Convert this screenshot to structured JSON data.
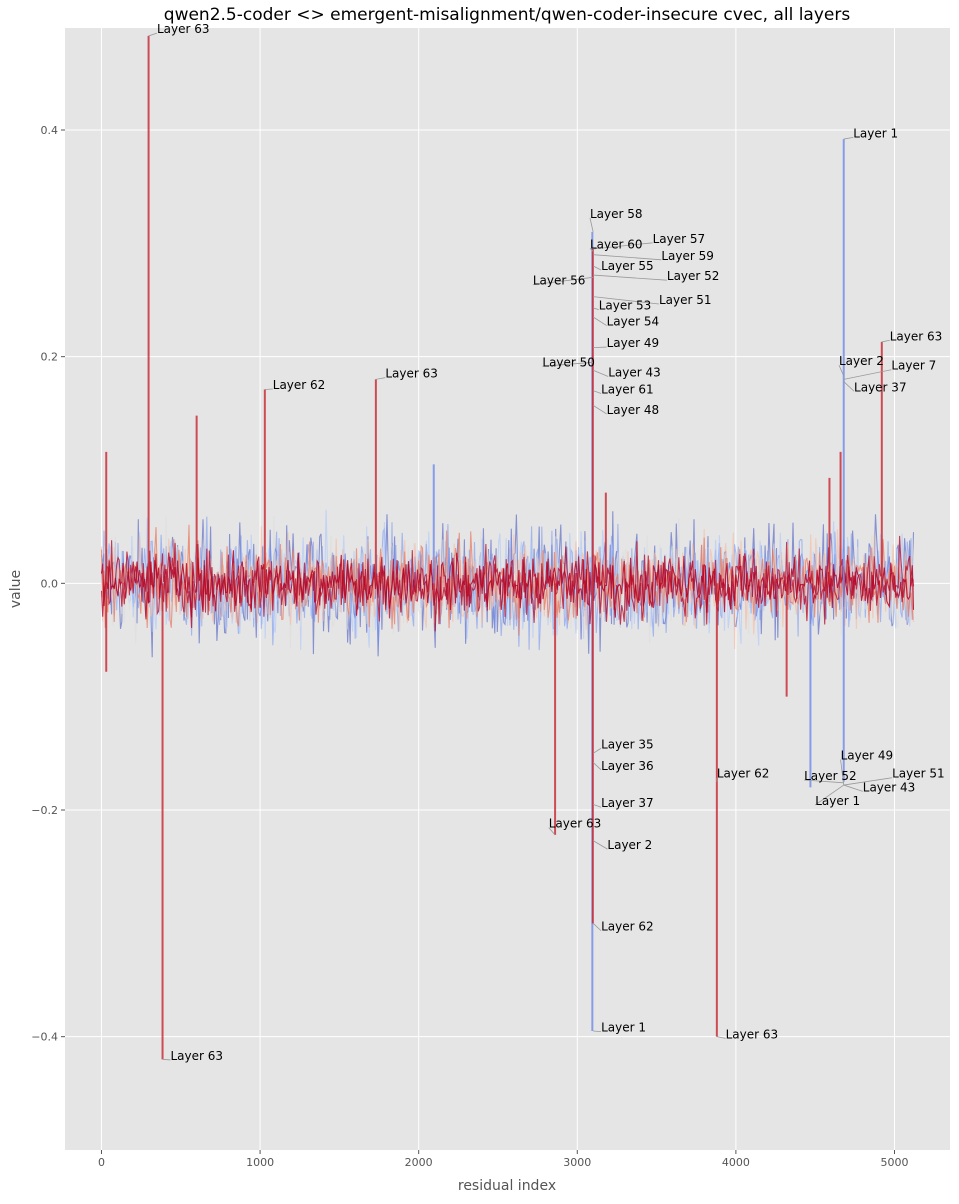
{
  "chart_data": {
    "type": "line",
    "title": "qwen2.5-coder <> emergent-misalignment/qwen-coder-insecure cvec, all layers",
    "xlabel": "residual index",
    "ylabel": "value",
    "xlim": [
      -230,
      5350
    ],
    "ylim": [
      -0.5,
      0.49
    ],
    "x_ticks": [
      0,
      1000,
      2000,
      3000,
      4000,
      5000
    ],
    "x_tick_labels": [
      "0",
      "1000",
      "2000",
      "3000",
      "4000",
      "5000"
    ],
    "y_ticks": [
      -0.4,
      -0.2,
      0.0,
      0.2,
      0.4
    ],
    "y_tick_labels": [
      "−0.4",
      "−0.2",
      "0.0",
      "0.2",
      "0.4"
    ],
    "grid": true,
    "n_residual": 5120,
    "colormap": "coolwarm (layer 1 blue → layer 63 red)",
    "band_colors": [
      "#3b4cc0",
      "#6f92f3",
      "#aac7fd",
      "#dddcdc",
      "#f7b89c",
      "#e8765c",
      "#b40426"
    ],
    "noise_band": {
      "blue_layers_amplitude": 0.045,
      "red_layers_amplitude": 0.035
    },
    "spikes": [
      {
        "x": 30,
        "top": 0.116,
        "bottom": -0.078,
        "layer": 63
      },
      {
        "x": 297,
        "top": 0.483,
        "bottom": 0.0,
        "layer": 63
      },
      {
        "x": 385,
        "top": 0.0,
        "bottom": -0.42,
        "layer": 63
      },
      {
        "x": 600,
        "top": 0.148,
        "bottom": 0.0,
        "layer": 63
      },
      {
        "x": 1030,
        "top": 0.171,
        "bottom": 0.0,
        "layer": 62
      },
      {
        "x": 1730,
        "top": 0.18,
        "bottom": 0.0,
        "layer": 63
      },
      {
        "x": 2095,
        "top": 0.105,
        "bottom": 0.0,
        "layer": 1
      },
      {
        "x": 2860,
        "top": 0.0,
        "bottom": -0.222,
        "layer": 63
      },
      {
        "x": 3095,
        "top": 0.31,
        "bottom": -0.395,
        "layer": 1
      },
      {
        "x": 3098,
        "top": 0.295,
        "bottom": -0.3,
        "layer": 62
      },
      {
        "x": 3180,
        "top": 0.08,
        "bottom": 0.0,
        "layer": 63
      },
      {
        "x": 3880,
        "top": 0.0,
        "bottom": -0.4,
        "layer": 63
      },
      {
        "x": 4320,
        "top": 0.0,
        "bottom": -0.1,
        "layer": 63
      },
      {
        "x": 4470,
        "top": 0.0,
        "bottom": -0.18,
        "layer": 1
      },
      {
        "x": 4590,
        "top": 0.093,
        "bottom": 0.0,
        "layer": 63
      },
      {
        "x": 4660,
        "top": 0.116,
        "bottom": 0.0,
        "layer": 63
      },
      {
        "x": 4680,
        "top": 0.392,
        "bottom": -0.175,
        "layer": 1
      },
      {
        "x": 4920,
        "top": 0.213,
        "bottom": 0.0,
        "layer": 63
      }
    ],
    "annotations": [
      {
        "text": "Layer 63",
        "x": 297,
        "y": 0.483,
        "tx": 350,
        "ty": 0.489
      },
      {
        "text": "Layer 62",
        "x": 1030,
        "y": 0.171,
        "tx": 1080,
        "ty": 0.175
      },
      {
        "text": "Layer 63",
        "x": 1730,
        "y": 0.18,
        "tx": 1790,
        "ty": 0.185
      },
      {
        "text": "Layer 1",
        "x": 4680,
        "y": 0.392,
        "tx": 4740,
        "ty": 0.397
      },
      {
        "text": "Layer 58",
        "x": 3100,
        "y": 0.31,
        "tx": 3080,
        "ty": 0.326
      },
      {
        "text": "Layer 57",
        "x": 3100,
        "y": 0.295,
        "tx": 3475,
        "ty": 0.304
      },
      {
        "text": "Layer 60",
        "x": 3100,
        "y": 0.293,
        "tx": 3080,
        "ty": 0.299
      },
      {
        "text": "Layer 59",
        "x": 3100,
        "y": 0.29,
        "tx": 3530,
        "ty": 0.289
      },
      {
        "text": "Layer 55",
        "x": 3100,
        "y": 0.28,
        "tx": 3150,
        "ty": 0.28
      },
      {
        "text": "Layer 52",
        "x": 3100,
        "y": 0.272,
        "tx": 3565,
        "ty": 0.271
      },
      {
        "text": "Layer 56",
        "x": 3100,
        "y": 0.27,
        "tx": 2720,
        "ty": 0.267
      },
      {
        "text": "Layer 51",
        "x": 3100,
        "y": 0.253,
        "tx": 3515,
        "ty": 0.25
      },
      {
        "text": "Layer 53",
        "x": 3100,
        "y": 0.243,
        "tx": 3135,
        "ty": 0.245
      },
      {
        "text": "Layer 54",
        "x": 3100,
        "y": 0.235,
        "tx": 3185,
        "ty": 0.231
      },
      {
        "text": "Layer 49",
        "x": 3100,
        "y": 0.208,
        "tx": 3185,
        "ty": 0.212
      },
      {
        "text": "Layer 50",
        "x": 3100,
        "y": 0.195,
        "tx": 2780,
        "ty": 0.195
      },
      {
        "text": "Layer 43",
        "x": 3100,
        "y": 0.188,
        "tx": 3195,
        "ty": 0.186
      },
      {
        "text": "Layer 61",
        "x": 3100,
        "y": 0.17,
        "tx": 3150,
        "ty": 0.171
      },
      {
        "text": "Layer 48",
        "x": 3100,
        "y": 0.157,
        "tx": 3185,
        "ty": 0.153
      },
      {
        "text": "Layer 63",
        "x": 4920,
        "y": 0.213,
        "tx": 4970,
        "ty": 0.218
      },
      {
        "text": "Layer 2",
        "x": 4680,
        "y": 0.183,
        "tx": 4650,
        "ty": 0.196
      },
      {
        "text": "Layer 7",
        "x": 4680,
        "y": 0.18,
        "tx": 4980,
        "ty": 0.192
      },
      {
        "text": "Layer 37",
        "x": 4680,
        "y": 0.178,
        "tx": 4745,
        "ty": 0.173
      },
      {
        "text": "Layer 35",
        "x": 3100,
        "y": -0.15,
        "tx": 3150,
        "ty": -0.142
      },
      {
        "text": "Layer 36",
        "x": 3100,
        "y": -0.158,
        "tx": 3150,
        "ty": -0.161
      },
      {
        "text": "Layer 37",
        "x": 3100,
        "y": -0.195,
        "tx": 3150,
        "ty": -0.194
      },
      {
        "text": "Layer 63",
        "x": 2860,
        "y": -0.222,
        "tx": 2820,
        "ty": -0.212
      },
      {
        "text": "Layer 2",
        "x": 3100,
        "y": -0.227,
        "tx": 3190,
        "ty": -0.231
      },
      {
        "text": "Layer 62",
        "x": 3100,
        "y": -0.3,
        "tx": 3150,
        "ty": -0.303
      },
      {
        "text": "Layer 1",
        "x": 3100,
        "y": -0.395,
        "tx": 3150,
        "ty": -0.392
      },
      {
        "text": "Layer 62",
        "x": 3880,
        "y": -0.175,
        "tx": 3880,
        "ty": -0.168
      },
      {
        "text": "Layer 63",
        "x": 3880,
        "y": -0.4,
        "tx": 3935,
        "ty": -0.398
      },
      {
        "text": "Layer 63",
        "x": 385,
        "y": -0.42,
        "tx": 435,
        "ty": -0.417
      },
      {
        "text": "Layer 49",
        "x": 4680,
        "y": -0.178,
        "tx": 4660,
        "ty": -0.152
      },
      {
        "text": "Layer 52",
        "x": 4680,
        "y": -0.176,
        "tx": 4430,
        "ty": -0.17
      },
      {
        "text": "Layer 51",
        "x": 4680,
        "y": -0.178,
        "tx": 4985,
        "ty": -0.168
      },
      {
        "text": "Layer 43",
        "x": 4680,
        "y": -0.178,
        "tx": 4800,
        "ty": -0.18
      },
      {
        "text": "Layer 1",
        "x": 4680,
        "y": -0.178,
        "tx": 4500,
        "ty": -0.192
      }
    ]
  }
}
